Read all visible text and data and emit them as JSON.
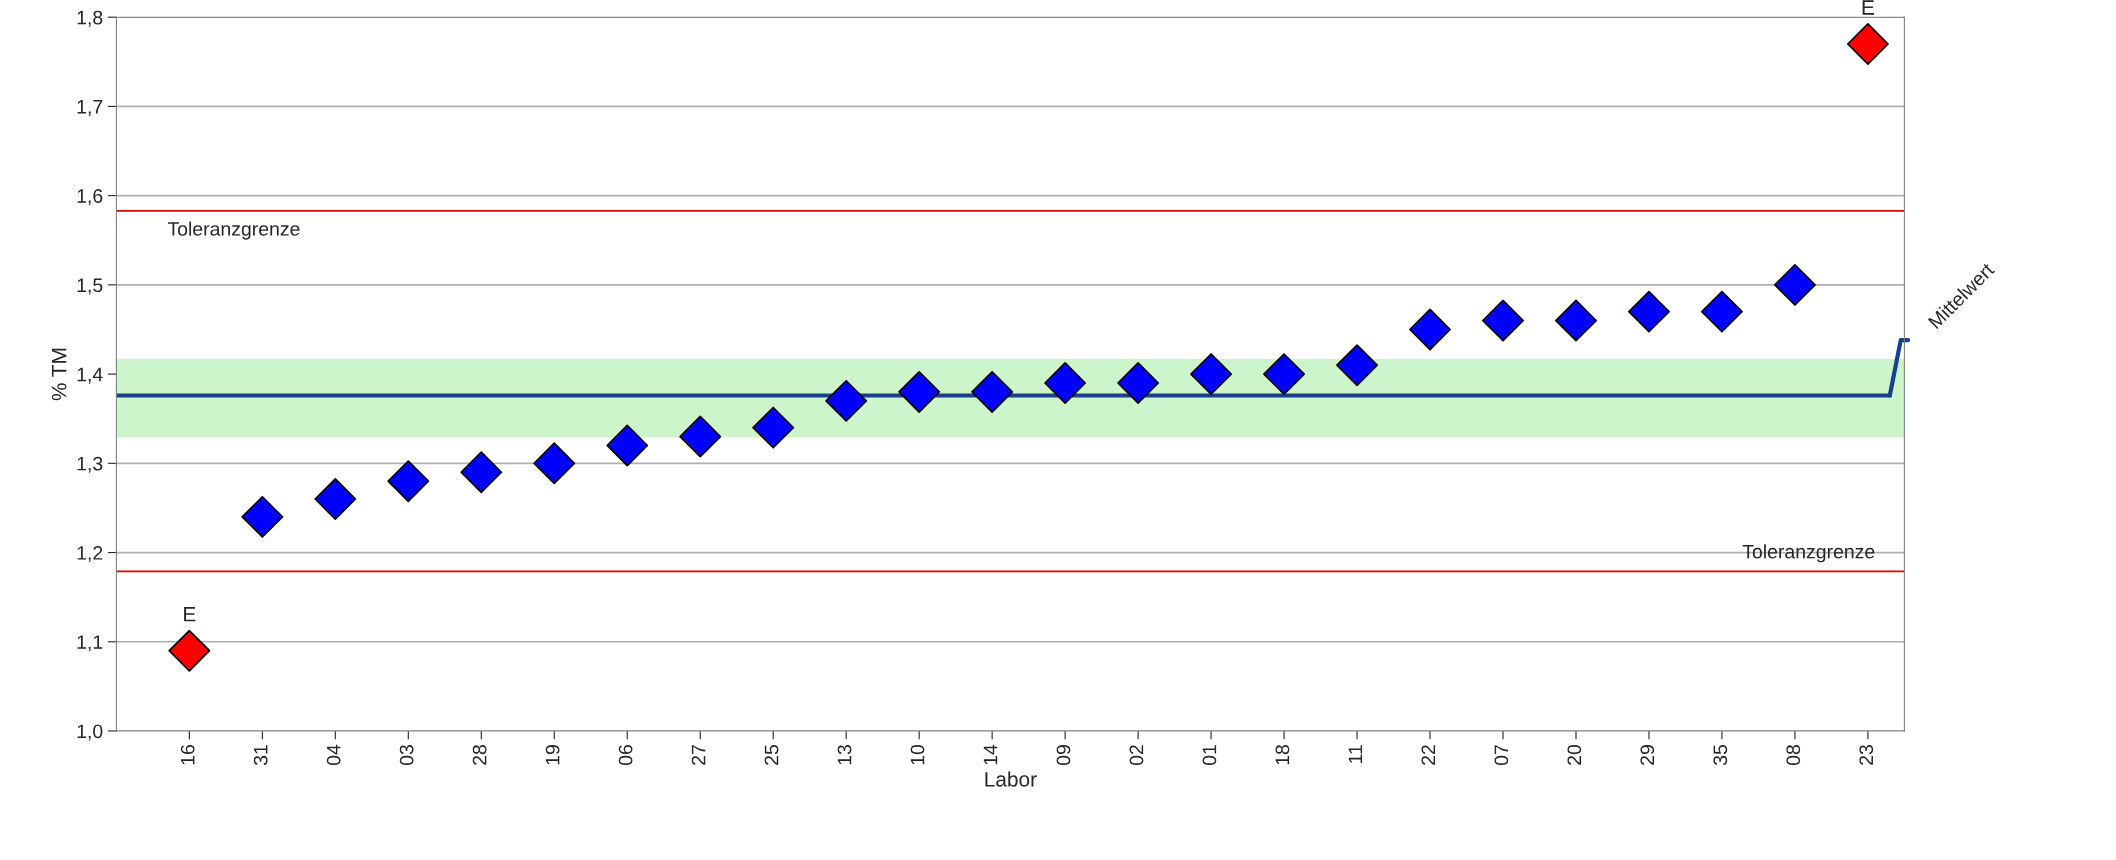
{
  "chart_data": {
    "type": "scatter",
    "xlabel": "Labor",
    "ylabel": "% TM",
    "categories": [
      "16",
      "31",
      "04",
      "03",
      "28",
      "19",
      "06",
      "27",
      "25",
      "13",
      "10",
      "14",
      "09",
      "02",
      "01",
      "18",
      "11",
      "22",
      "07",
      "20",
      "29",
      "35",
      "08",
      "23"
    ],
    "values": [
      1.09,
      1.24,
      1.26,
      1.28,
      1.29,
      1.3,
      1.32,
      1.33,
      1.34,
      1.37,
      1.38,
      1.38,
      1.39,
      1.39,
      1.4,
      1.4,
      1.41,
      1.45,
      1.46,
      1.46,
      1.47,
      1.47,
      1.5,
      1.77
    ],
    "colors": [
      "#ff0000",
      "#0000ff",
      "#0000ff",
      "#0000ff",
      "#0000ff",
      "#0000ff",
      "#0000ff",
      "#0000ff",
      "#0000ff",
      "#0000ff",
      "#0000ff",
      "#0000ff",
      "#0000ff",
      "#0000ff",
      "#0000ff",
      "#0000ff",
      "#0000ff",
      "#0000ff",
      "#0000ff",
      "#0000ff",
      "#0000ff",
      "#0000ff",
      "#0000ff",
      "#ff0000"
    ],
    "marker": "diamond",
    "ylim": [
      1.0,
      1.8
    ],
    "yticks": [
      {
        "value": 1.0,
        "label": "1,0"
      },
      {
        "value": 1.1,
        "label": "1,1"
      },
      {
        "value": 1.2,
        "label": "1,2"
      },
      {
        "value": 1.3,
        "label": "1,3"
      },
      {
        "value": 1.4,
        "label": "1,4"
      },
      {
        "value": 1.5,
        "label": "1,5"
      },
      {
        "value": 1.6,
        "label": "1,6"
      },
      {
        "value": 1.7,
        "label": "1,7"
      },
      {
        "value": 1.8,
        "label": "1,8"
      }
    ],
    "grid": "y",
    "ref_lines": [
      {
        "axis": "y",
        "value": 1.583,
        "label": "Toleranzgrenze",
        "color": "#e00000"
      },
      {
        "axis": "y",
        "value": 1.179,
        "label": "Toleranzgrenze",
        "color": "#e00000"
      },
      {
        "axis": "y",
        "value": 1.376,
        "label": "Mittelwert",
        "color": "#1a3f8f"
      }
    ],
    "bands": [
      {
        "axis": "y",
        "from": 1.329,
        "to": 1.417,
        "color": "#ccf5cc"
      }
    ],
    "annotations": [
      {
        "text": "E",
        "x": "16",
        "y": 1.09
      },
      {
        "text": "E",
        "x": "23",
        "y": 1.77
      }
    ]
  }
}
